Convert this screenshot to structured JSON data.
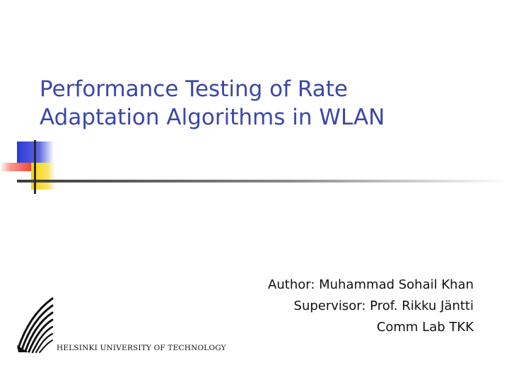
{
  "slide": {
    "title_lines": [
      "Performance Testing of Rate",
      "Adaptation Algorithms in WLAN"
    ],
    "info_lines": [
      "Author: Muhammad Sohail Khan",
      "Supervisor: Prof. Rikku Jäntti",
      "Comm Lab TKK"
    ],
    "logo_text": "HELSINKI UNIVERSITY OF TECHNOLOGY"
  },
  "colors": {
    "title": "#3a47a8",
    "accent_blue": "#2b3ad6",
    "accent_red": "#f03a2a",
    "accent_yellow": "#f7d300",
    "rule": "#4a4a4a"
  }
}
